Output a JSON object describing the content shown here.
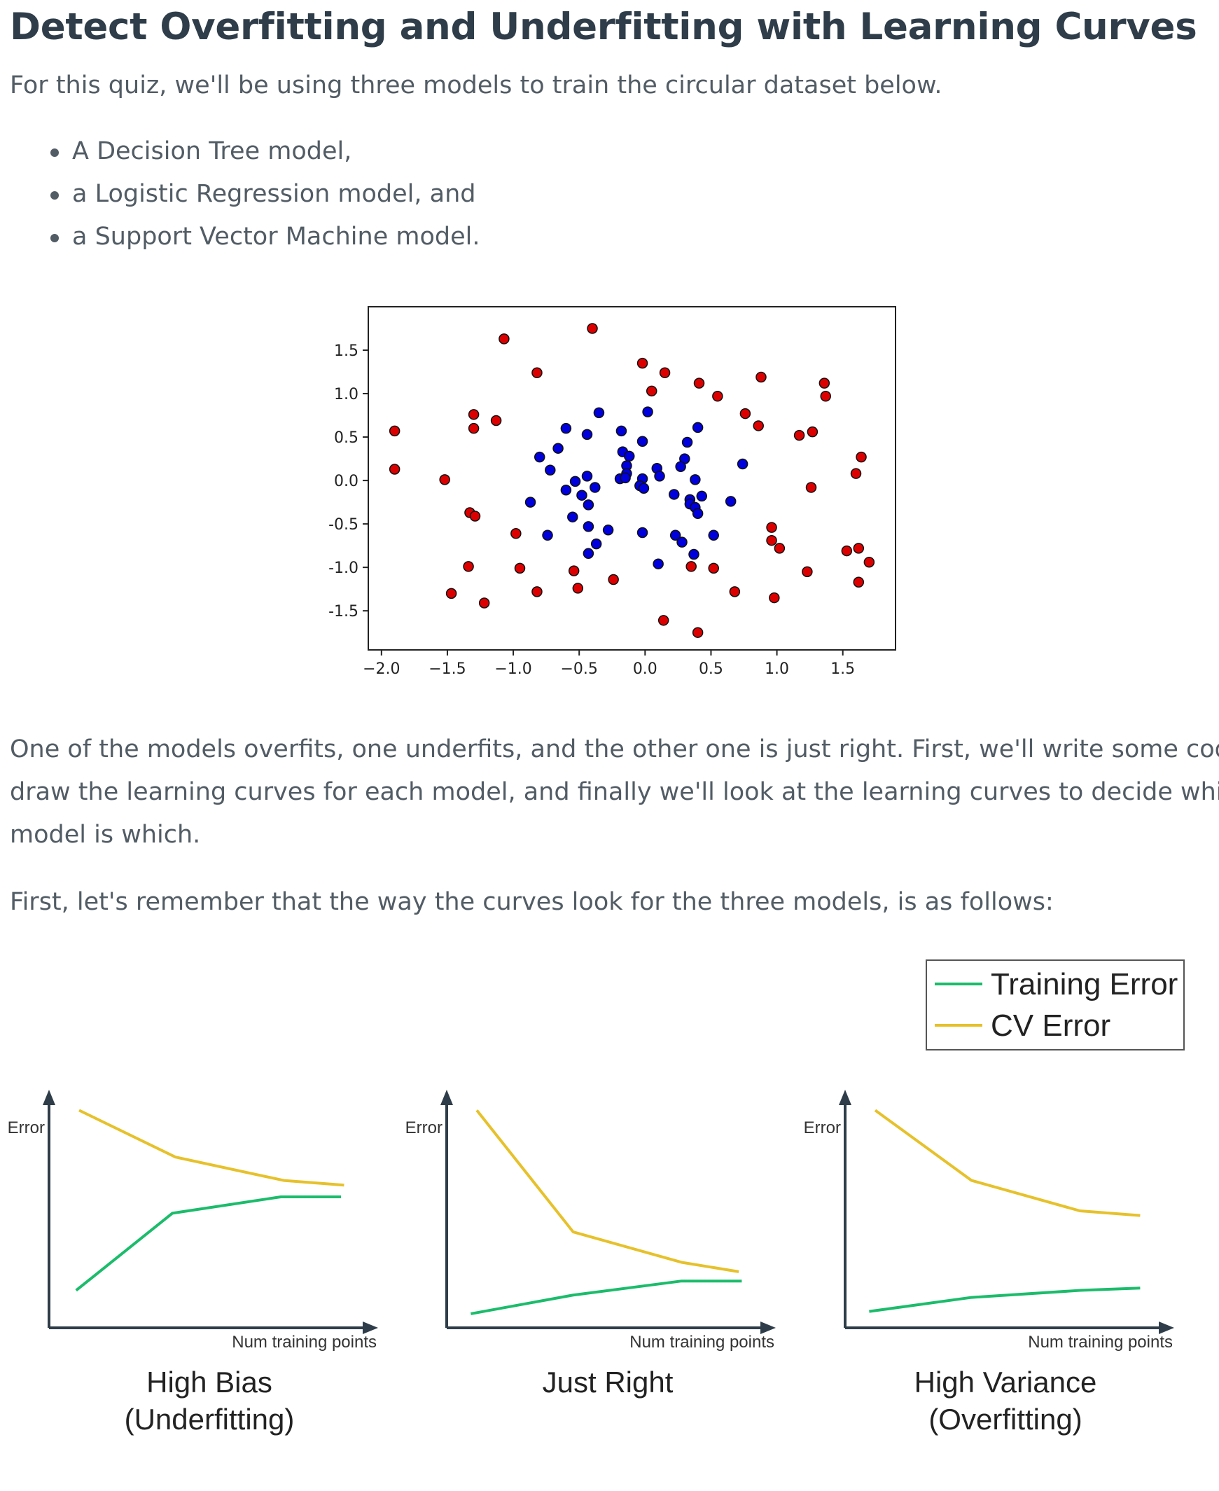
{
  "title": "Detect Overfitting and Underfitting with Learning Curves",
  "intro": "For this quiz, we'll be using three models to train the circular dataset below.",
  "bullets": [
    "A Decision Tree model,",
    "a Logistic Regression model, and",
    "a Support Vector Machine model."
  ],
  "paragraph1_lines": [
    "One of the models overfits, one underfits, and the other one is just right. First, we'll write some code to",
    "draw the learning curves for each model, and finally we'll look at the learning curves to decide which",
    "model is which."
  ],
  "paragraph2": "First, let's remember that the way the curves look for the three models, is as follows:",
  "chart_data": [
    {
      "type": "scatter",
      "xlim": [
        -2.1,
        1.9
      ],
      "ylim": [
        -1.95,
        2.0
      ],
      "x_ticks": [
        -2.0,
        -1.5,
        -1.0,
        -0.5,
        0.0,
        0.5,
        1.0,
        1.5
      ],
      "x_tick_labels": [
        "−2.0",
        "−1.5",
        "−1.0",
        "−0.5",
        "0.0",
        "0.5",
        "1.0",
        "1.5"
      ],
      "y_ticks": [
        1.5,
        1.0,
        0.5,
        0.0,
        -0.5,
        -1.0,
        -1.5
      ],
      "y_tick_labels": [
        "1.5",
        "1.0",
        "0.5",
        "0.0",
        "-0.5",
        "-1.0",
        "-1.5"
      ],
      "grid": false,
      "series": [
        {
          "color": "#dd0000",
          "points": [
            [
              -0.4,
              1.75
            ],
            [
              -1.07,
              1.63
            ],
            [
              -0.82,
              1.24
            ],
            [
              -0.02,
              1.35
            ],
            [
              0.15,
              1.24
            ],
            [
              0.05,
              1.03
            ],
            [
              0.41,
              1.12
            ],
            [
              0.55,
              0.97
            ],
            [
              0.88,
              1.19
            ],
            [
              1.36,
              1.12
            ],
            [
              1.37,
              0.97
            ],
            [
              -1.3,
              0.76
            ],
            [
              -1.13,
              0.69
            ],
            [
              -1.3,
              0.6
            ],
            [
              0.76,
              0.77
            ],
            [
              0.86,
              0.63
            ],
            [
              1.17,
              0.52
            ],
            [
              1.27,
              0.56
            ],
            [
              -1.9,
              0.57
            ],
            [
              -1.9,
              0.13
            ],
            [
              -1.52,
              0.01
            ],
            [
              1.64,
              0.27
            ],
            [
              1.6,
              0.08
            ],
            [
              1.26,
              -0.08
            ],
            [
              -1.33,
              -0.37
            ],
            [
              -1.29,
              -0.41
            ],
            [
              -0.98,
              -0.61
            ],
            [
              0.96,
              -0.54
            ],
            [
              0.96,
              -0.69
            ],
            [
              1.02,
              -0.78
            ],
            [
              1.53,
              -0.81
            ],
            [
              1.62,
              -0.78
            ],
            [
              1.7,
              -0.94
            ],
            [
              -1.34,
              -0.99
            ],
            [
              -0.95,
              -1.01
            ],
            [
              -0.54,
              -1.04
            ],
            [
              0.35,
              -0.99
            ],
            [
              0.52,
              -1.01
            ],
            [
              1.23,
              -1.05
            ],
            [
              -0.24,
              -1.14
            ],
            [
              -1.47,
              -1.3
            ],
            [
              -0.82,
              -1.28
            ],
            [
              -0.51,
              -1.24
            ],
            [
              0.68,
              -1.28
            ],
            [
              0.98,
              -1.35
            ],
            [
              1.62,
              -1.17
            ],
            [
              -1.22,
              -1.41
            ],
            [
              0.14,
              -1.61
            ],
            [
              0.4,
              -1.75
            ]
          ]
        },
        {
          "color": "#0000dd",
          "points": [
            [
              -0.35,
              0.78
            ],
            [
              0.02,
              0.79
            ],
            [
              -0.6,
              0.6
            ],
            [
              -0.44,
              0.53
            ],
            [
              -0.18,
              0.57
            ],
            [
              0.4,
              0.61
            ],
            [
              -0.66,
              0.37
            ],
            [
              -0.8,
              0.27
            ],
            [
              -0.72,
              0.12
            ],
            [
              -0.02,
              0.45
            ],
            [
              -0.17,
              0.33
            ],
            [
              -0.12,
              0.28
            ],
            [
              0.32,
              0.44
            ],
            [
              0.3,
              0.25
            ],
            [
              0.27,
              0.16
            ],
            [
              0.74,
              0.19
            ],
            [
              -0.14,
              0.17
            ],
            [
              -0.14,
              0.08
            ],
            [
              0.09,
              0.14
            ],
            [
              0.11,
              0.05
            ],
            [
              -0.44,
              0.05
            ],
            [
              -0.53,
              -0.01
            ],
            [
              -0.19,
              0.02
            ],
            [
              -0.15,
              0.03
            ],
            [
              -0.02,
              0.02
            ],
            [
              -0.04,
              -0.06
            ],
            [
              -0.01,
              -0.09
            ],
            [
              0.38,
              0.01
            ],
            [
              -0.6,
              -0.11
            ],
            [
              -0.38,
              -0.08
            ],
            [
              -0.48,
              -0.17
            ],
            [
              0.22,
              -0.16
            ],
            [
              0.34,
              -0.22
            ],
            [
              0.34,
              -0.27
            ],
            [
              0.38,
              -0.31
            ],
            [
              0.4,
              -0.38
            ],
            [
              0.43,
              -0.18
            ],
            [
              0.65,
              -0.24
            ],
            [
              -0.87,
              -0.25
            ],
            [
              -0.43,
              -0.28
            ],
            [
              -0.55,
              -0.42
            ],
            [
              -0.43,
              -0.53
            ],
            [
              -0.28,
              -0.57
            ],
            [
              -0.74,
              -0.63
            ],
            [
              -0.02,
              -0.6
            ],
            [
              0.23,
              -0.63
            ],
            [
              0.28,
              -0.71
            ],
            [
              0.52,
              -0.63
            ],
            [
              -0.37,
              -0.73
            ],
            [
              -0.43,
              -0.84
            ],
            [
              0.37,
              -0.85
            ],
            [
              0.1,
              -0.96
            ]
          ]
        }
      ]
    },
    {
      "type": "line",
      "title": "High Bias\n(Underfitting)",
      "title_lines": [
        "High Bias",
        "(Underfitting)"
      ],
      "xlabel": "Num training points",
      "ylabel": "Error",
      "xlim": [
        0,
        1
      ],
      "ylim": [
        0,
        1
      ],
      "series": [
        {
          "name": "Training Error",
          "color": "#1bbc6b",
          "x": [
            0.09,
            0.41,
            0.77,
            0.97
          ],
          "y": [
            0.16,
            0.49,
            0.56,
            0.56
          ]
        },
        {
          "name": "CV Error",
          "color": "#e6c12a",
          "x": [
            0.1,
            0.42,
            0.78,
            0.98
          ],
          "y": [
            0.93,
            0.73,
            0.63,
            0.61
          ]
        }
      ]
    },
    {
      "type": "line",
      "title": "Just Right",
      "title_lines": [
        "Just Right"
      ],
      "xlabel": "Num training points",
      "ylabel": "Error",
      "xlim": [
        0,
        1
      ],
      "ylim": [
        0,
        1
      ],
      "series": [
        {
          "name": "Training Error",
          "color": "#1bbc6b",
          "x": [
            0.08,
            0.42,
            0.78,
            0.98
          ],
          "y": [
            0.06,
            0.14,
            0.2,
            0.2
          ]
        },
        {
          "name": "CV Error",
          "color": "#e6c12a",
          "x": [
            0.1,
            0.42,
            0.78,
            0.97
          ],
          "y": [
            0.93,
            0.41,
            0.28,
            0.24
          ]
        }
      ]
    },
    {
      "type": "line",
      "title": "High Variance\n(Overfitting)",
      "title_lines": [
        "High Variance",
        "(Overfitting)"
      ],
      "xlabel": "Num training points",
      "ylabel": "Error",
      "xlim": [
        0,
        1
      ],
      "ylim": [
        0,
        1
      ],
      "series": [
        {
          "name": "Training Error",
          "color": "#1bbc6b",
          "x": [
            0.08,
            0.42,
            0.78,
            0.98
          ],
          "y": [
            0.07,
            0.13,
            0.16,
            0.17
          ]
        },
        {
          "name": "CV Error",
          "color": "#e6c12a",
          "x": [
            0.1,
            0.42,
            0.78,
            0.98
          ],
          "y": [
            0.93,
            0.63,
            0.5,
            0.48
          ]
        }
      ]
    }
  ],
  "legend": {
    "placement": "top-right",
    "entries": [
      {
        "label": "Training Error",
        "color": "#1bbc6b"
      },
      {
        "label": "CV Error",
        "color": "#e6c12a"
      }
    ]
  }
}
